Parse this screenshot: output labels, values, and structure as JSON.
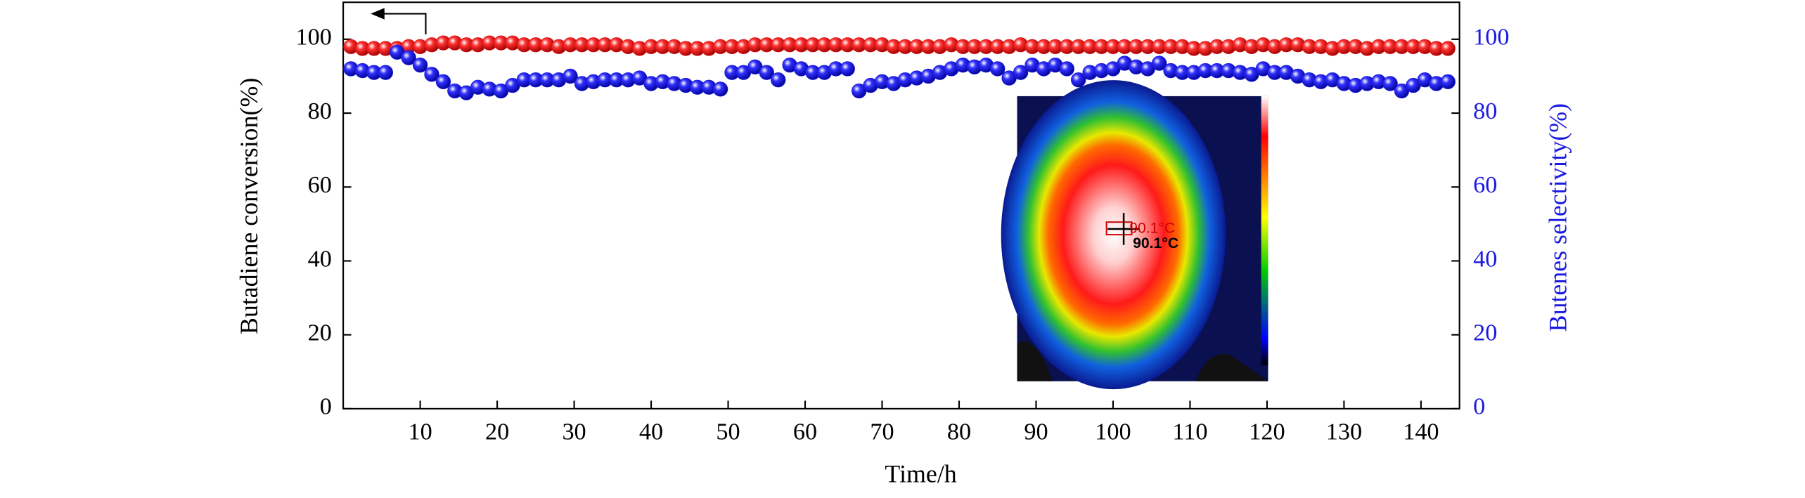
{
  "chart_data": {
    "type": "scatter",
    "x_label": "Time/h",
    "y_label": "Butadiene conversion(%)",
    "y2_label": "Butenes selectivity(%)",
    "inset_labels": [
      "90.1°C",
      "90.1°C"
    ],
    "xlim": [
      0,
      145
    ],
    "xticks": [
      10,
      20,
      30,
      40,
      50,
      60,
      70,
      80,
      90,
      100,
      110,
      120,
      130,
      140
    ],
    "ylim": [
      0,
      110
    ],
    "yticks": [
      0,
      20,
      40,
      60,
      80,
      100
    ],
    "y2lim": [
      0,
      110
    ],
    "y2ticks": [
      0,
      20,
      40,
      60,
      80,
      100
    ],
    "x": [
      1,
      2.5,
      4,
      5.5,
      7,
      8.5,
      10,
      11.5,
      13,
      14.5,
      16,
      17.5,
      19,
      20.5,
      22,
      23.5,
      25,
      26.5,
      28,
      29.5,
      31,
      32.5,
      34,
      35.5,
      37,
      38.5,
      40,
      41.5,
      43,
      44.5,
      46,
      47.5,
      49,
      50.5,
      52,
      53.5,
      55,
      56.5,
      58,
      59.5,
      61,
      62.5,
      64,
      65.5,
      67,
      68.5,
      70,
      71.5,
      73,
      74.5,
      76,
      77.5,
      79,
      80.5,
      82,
      83.5,
      85,
      86.5,
      88,
      89.5,
      91,
      92.5,
      94,
      95.5,
      97,
      98.5,
      100,
      101.5,
      103,
      104.5,
      106,
      107.5,
      109,
      110.5,
      112,
      113.5,
      115,
      116.5,
      118,
      119.5,
      121,
      122.5,
      124,
      125.5,
      127,
      128.5,
      130,
      131.5,
      133,
      134.5,
      136,
      137.5,
      139,
      140.5,
      142,
      143.5
    ],
    "series": [
      {
        "name": "Butadiene conversion",
        "color": "#e01010",
        "axis": "y",
        "values": [
          98,
          97.5,
          97.5,
          97.5,
          97.5,
          98,
          98,
          98.5,
          99,
          99,
          98.5,
          98.5,
          99,
          99,
          99,
          98.5,
          98.5,
          98.5,
          98,
          98.5,
          98.5,
          98.5,
          98.5,
          98.5,
          98,
          97.5,
          98,
          98,
          98,
          97.5,
          97.5,
          97.5,
          98,
          98,
          98,
          98.5,
          98.5,
          98.5,
          98.5,
          98.5,
          98.5,
          98.5,
          98.5,
          98.5,
          98.5,
          98.5,
          98.5,
          98,
          98,
          98,
          98,
          98,
          98.5,
          98,
          98,
          98,
          98,
          98,
          98.5,
          98,
          98,
          98,
          98,
          98,
          98,
          98,
          98,
          98,
          98,
          98,
          98,
          98,
          98,
          97.5,
          97.5,
          98,
          98,
          98.5,
          98,
          98.5,
          98,
          98.5,
          98.5,
          98,
          98,
          97.5,
          98,
          98,
          97.5,
          98,
          98,
          98,
          98,
          98,
          97.5,
          97.5
        ]
      },
      {
        "name": "Butenes selectivity",
        "color": "#1a1ae0",
        "axis": "y2",
        "values": [
          92,
          91.5,
          91,
          91,
          96.5,
          95,
          93,
          90.5,
          88.5,
          86,
          85.5,
          87,
          86.5,
          86,
          87.5,
          89,
          89,
          89,
          89,
          90,
          88,
          88.5,
          89,
          89,
          89,
          89.5,
          88,
          88.5,
          88,
          87.5,
          87,
          87,
          86.5,
          91,
          91,
          92.5,
          91,
          89,
          93,
          92,
          91,
          91,
          92,
          92,
          86,
          87.5,
          88.5,
          88,
          89,
          89.5,
          90,
          91,
          92,
          93,
          92.5,
          93,
          92,
          89.5,
          91,
          93,
          92,
          93,
          92,
          89,
          91,
          91.5,
          92,
          93.5,
          92.5,
          92,
          93.5,
          91.5,
          91,
          91,
          91.5,
          91.5,
          91.5,
          91,
          90.5,
          92,
          91,
          91,
          90,
          89,
          88.5,
          89,
          88,
          87.5,
          88,
          88.5,
          88,
          86,
          87.5,
          89,
          88,
          88.5
        ]
      }
    ]
  }
}
